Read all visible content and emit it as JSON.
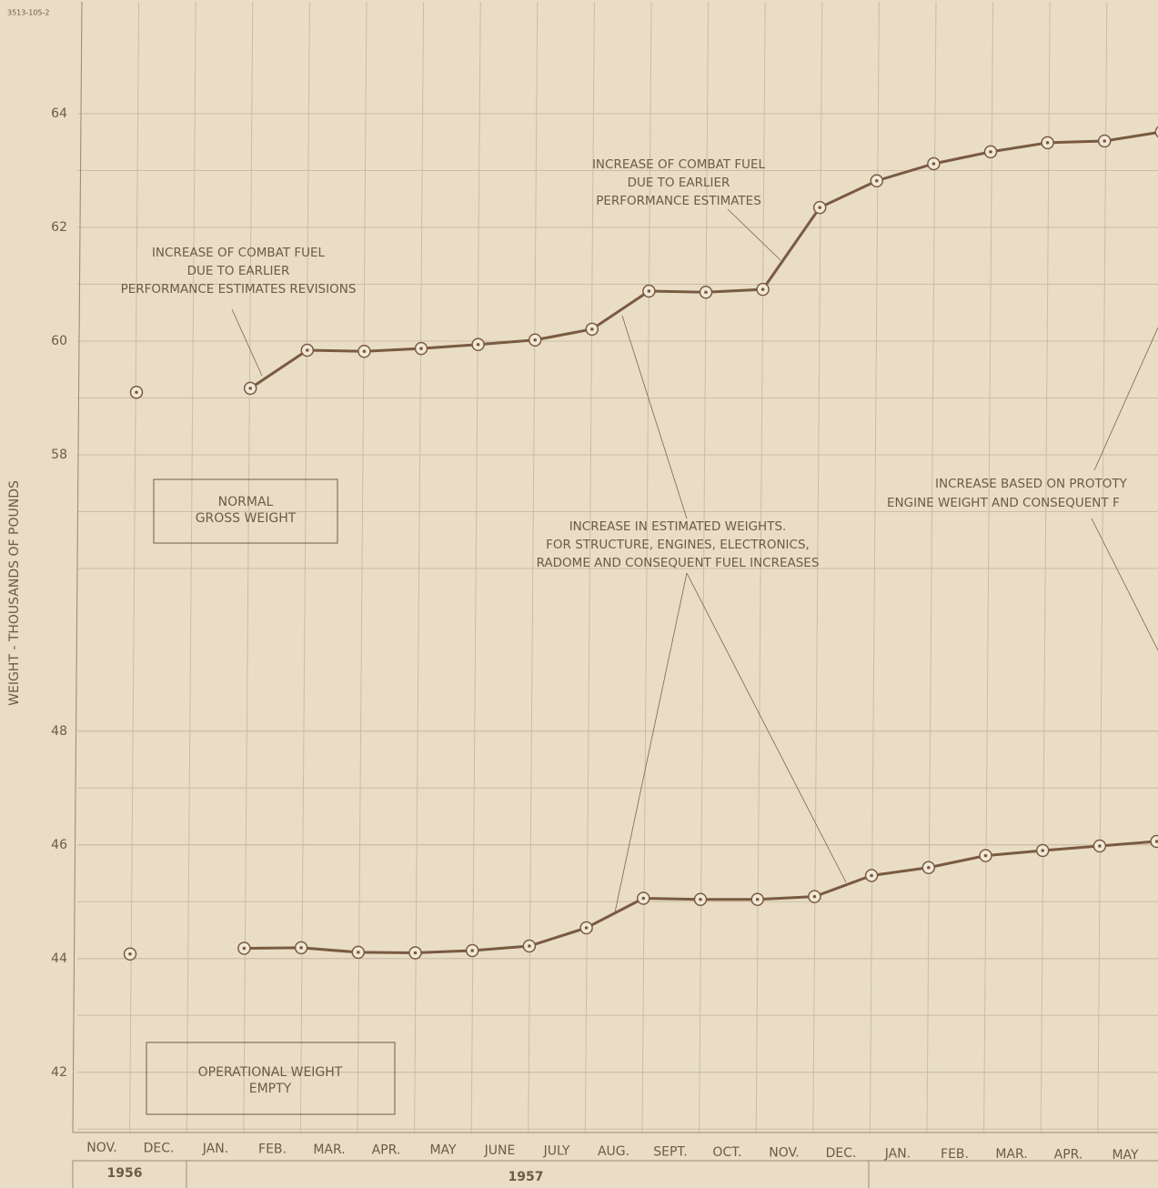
{
  "doc_id": "3513-105-2",
  "chart_data": [
    {
      "type": "line",
      "y_label": "WEIGHT - THOUSANDS OF POUNDS",
      "categories": [
        "NOV.",
        "DEC.",
        "JAN.",
        "FEB.",
        "MAR.",
        "APR.",
        "MAY",
        "JUNE",
        "JULY",
        "AUG.",
        "SEPT.",
        "OCT.",
        "NOV.",
        "DEC.",
        "JAN.",
        "FEB.",
        "MAR.",
        "APR.",
        "MAY"
      ],
      "years": [
        "1956",
        "1957"
      ],
      "ylim": [
        55.6,
        65.84
      ],
      "yticks": [
        58,
        60,
        62,
        64
      ],
      "grid": true,
      "series": [
        {
          "name": [
            "NORMAL",
            "GROSS WEIGHT"
          ],
          "color": "#7a5a42",
          "values": [
            59.1,
            null,
            59.17,
            59.84,
            59.82,
            59.87,
            59.94,
            60.02,
            60.21,
            60.88,
            60.86,
            60.91,
            62.35,
            62.82,
            63.12,
            63.33,
            63.49,
            63.52,
            63.68
          ]
        }
      ],
      "annotations": [
        [
          "INCREASE OF COMBAT FUEL",
          "DUE TO EARLIER",
          "PERFORMANCE ESTIMATES REVISIONS"
        ],
        [
          "INCREASE OF COMBAT FUEL",
          "DUE TO EARLIER",
          "PERFORMANCE ESTIMATES"
        ],
        [
          "INCREASE IN ESTIMATED WEIGHTS.",
          "FOR STRUCTURE, ENGINES, ELECTRONICS,",
          "RADOME AND CONSEQUENT FUEL INCREASES"
        ],
        [
          "INCREASE BASED ON PROTOTY",
          "ENGINE WEIGHT AND CONSEQUENT F"
        ]
      ]
    },
    {
      "type": "line",
      "ylim": [
        40.94,
        50.46
      ],
      "yticks": [
        42,
        44,
        46,
        48
      ],
      "grid": true,
      "series": [
        {
          "name": [
            "OPERATIONAL WEIGHT",
            "EMPTY"
          ],
          "color": "#7a5a42",
          "values": [
            44.08,
            null,
            44.18,
            44.19,
            44.11,
            44.1,
            44.14,
            44.22,
            44.54,
            45.06,
            45.04,
            45.04,
            45.09,
            45.46,
            45.6,
            45.81,
            45.9,
            45.98,
            46.06
          ]
        }
      ]
    }
  ]
}
